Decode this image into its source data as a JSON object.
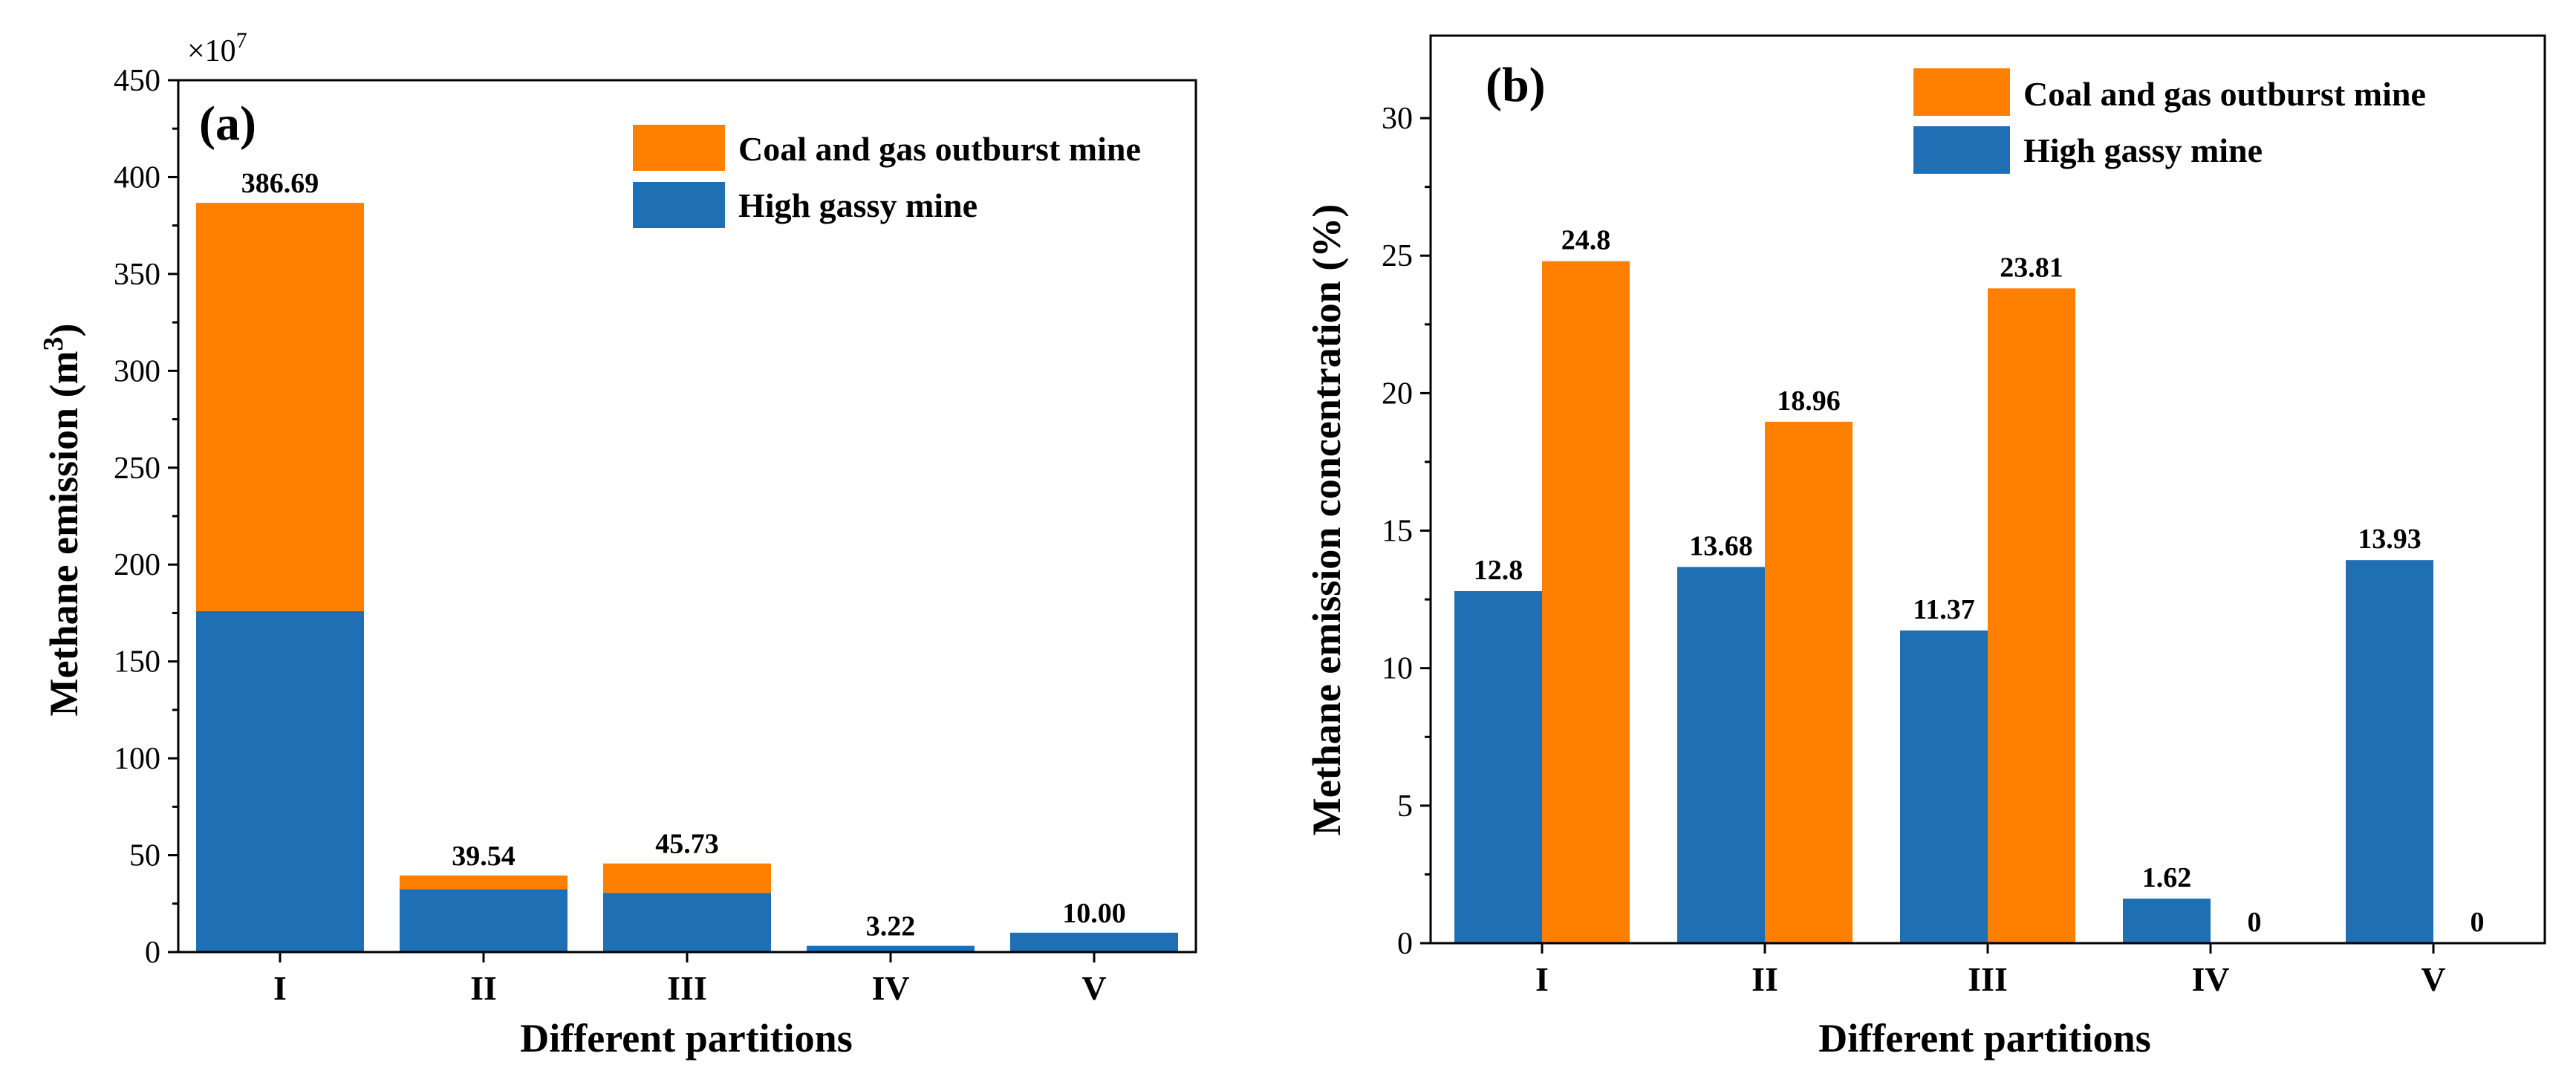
{
  "colors": {
    "high_gassy": "#1f6fb4",
    "outburst": "#ff8000",
    "axis": "#000000",
    "background": "#ffffff"
  },
  "chart_data": [
    {
      "id": "a",
      "type": "bar",
      "stacked": true,
      "panel_label": "(a)",
      "title": "",
      "xlabel": "Different partitions",
      "ylabel": "Methane emission (m",
      "ylabel_sup": "3",
      "ylabel_close": ")",
      "multiplier": "×10",
      "multiplier_exp": "7",
      "ylim": [
        0,
        450
      ],
      "yticks": [
        0,
        50,
        100,
        150,
        200,
        250,
        300,
        350,
        400,
        450
      ],
      "categories": [
        "I",
        "II",
        "III",
        "IV",
        "V"
      ],
      "legend_position": "top-right",
      "series": [
        {
          "name": "High gassy mine",
          "color": "#1f6fb4",
          "values": [
            176.0,
            32.5,
            30.5,
            3.22,
            10.0
          ]
        },
        {
          "name": "Coal and gas outburst mine",
          "color": "#ff8000",
          "values": [
            210.69,
            7.04,
            15.23,
            0,
            0
          ]
        }
      ],
      "data_labels": [
        "386.69",
        "39.54",
        "45.73",
        "3.22",
        "10.00"
      ],
      "totals": [
        386.69,
        39.54,
        45.73,
        3.22,
        10.0
      ]
    },
    {
      "id": "b",
      "type": "bar",
      "stacked": false,
      "panel_label": "(b)",
      "title": "",
      "xlabel": "Different partitions",
      "ylabel": "Methane emission concentration (%)",
      "ylim": [
        0,
        33
      ],
      "yticks": [
        0,
        5,
        10,
        15,
        20,
        25,
        30
      ],
      "categories": [
        "I",
        "II",
        "III",
        "IV",
        "V"
      ],
      "legend_position": "top-right",
      "series": [
        {
          "name": "High gassy mine",
          "color": "#1f6fb4",
          "values": [
            12.8,
            13.68,
            11.37,
            1.62,
            13.93
          ],
          "labels": [
            "12.8",
            "13.68",
            "11.37",
            "1.62",
            "13.93"
          ]
        },
        {
          "name": "Coal and gas outburst mine",
          "color": "#ff8000",
          "values": [
            24.8,
            18.96,
            23.81,
            0,
            0
          ],
          "labels": [
            "24.8",
            "18.96",
            "23.81",
            "0",
            "0"
          ]
        }
      ]
    }
  ]
}
